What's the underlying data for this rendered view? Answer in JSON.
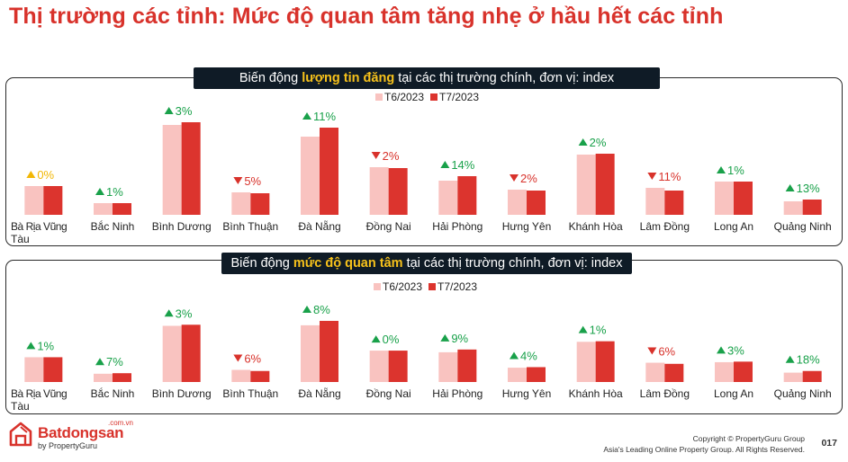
{
  "title": "Thị trường các tỉnh: Mức độ quan tâm tăng nhẹ ở hầu hết các tỉnh",
  "colors": {
    "t6": "#f9c3c0",
    "t7": "#dc342e",
    "up": "#19a14a",
    "down": "#d8322b",
    "flat": "#f2b705"
  },
  "panels": [
    {
      "heading_pre": "Biến động ",
      "heading_hl": "lượng tin đăng",
      "heading_post": " tại các thị trường chính, đơn vị: index"
    },
    {
      "heading_pre": "Biến động ",
      "heading_hl": "mức độ quan tâm",
      "heading_post": " tại các thị trường chính, đơn vị: index"
    }
  ],
  "chart_data": [
    {
      "type": "bar",
      "title": "Biến động lượng tin đăng tại các thị trường chính, đơn vị: index",
      "categories": [
        "Bà Rịa Vũng Tàu",
        "Bắc Ninh",
        "Bình Dương",
        "Bình Thuận",
        "Đà Nẵng",
        "Đồng Nai",
        "Hải Phòng",
        "Hưng Yên",
        "Khánh Hòa",
        "Lâm Đồng",
        "Long An",
        "Quảng Ninh"
      ],
      "series": [
        {
          "name": "T6/2023",
          "values": [
            32,
            13,
            100,
            25,
            87,
            53,
            38,
            28,
            67,
            30,
            37,
            15
          ]
        },
        {
          "name": "T7/2023",
          "values": [
            32,
            13,
            103,
            24,
            97,
            52,
            43,
            27,
            68,
            27,
            37,
            17
          ]
        }
      ],
      "changes": [
        {
          "dir": "flat",
          "label": "0%"
        },
        {
          "dir": "up",
          "label": "1%"
        },
        {
          "dir": "up",
          "label": "3%"
        },
        {
          "dir": "down",
          "label": "5%"
        },
        {
          "dir": "up",
          "label": "11%"
        },
        {
          "dir": "down",
          "label": "2%"
        },
        {
          "dir": "up",
          "label": "14%"
        },
        {
          "dir": "down",
          "label": "2%"
        },
        {
          "dir": "up",
          "label": "2%"
        },
        {
          "dir": "down",
          "label": "11%"
        },
        {
          "dir": "up",
          "label": "1%"
        },
        {
          "dir": "up",
          "label": "13%"
        }
      ],
      "ylim": [
        0,
        103
      ],
      "legend": "top-center",
      "grid": false
    },
    {
      "type": "bar",
      "title": "Biến động mức độ quan tâm tại các thị trường chính, đơn vị: index",
      "categories": [
        "Bà Rịa Vũng Tàu",
        "Bắc Ninh",
        "Bình Dương",
        "Bình Thuận",
        "Đà Nẵng",
        "Đồng Nai",
        "Hải Phòng",
        "Hưng Yên",
        "Khánh Hòa",
        "Lâm Đồng",
        "Long An",
        "Quảng Ninh"
      ],
      "series": [
        {
          "name": "T6/2023",
          "values": [
            45,
            15,
            102,
            22,
            103,
            57,
            54,
            26,
            73,
            35,
            36,
            17
          ]
        },
        {
          "name": "T7/2023",
          "values": [
            45,
            16,
            104,
            20,
            111,
            57,
            59,
            27,
            74,
            33,
            37,
            20
          ]
        }
      ],
      "changes": [
        {
          "dir": "up",
          "label": "1%"
        },
        {
          "dir": "up",
          "label": "7%"
        },
        {
          "dir": "up",
          "label": "3%"
        },
        {
          "dir": "down",
          "label": "6%"
        },
        {
          "dir": "up",
          "label": "8%"
        },
        {
          "dir": "up",
          "label": "0%"
        },
        {
          "dir": "up",
          "label": "9%"
        },
        {
          "dir": "up",
          "label": "4%"
        },
        {
          "dir": "up",
          "label": "1%"
        },
        {
          "dir": "down",
          "label": "6%"
        },
        {
          "dir": "up",
          "label": "3%"
        },
        {
          "dir": "up",
          "label": "18%"
        }
      ],
      "ylim": [
        0,
        111
      ],
      "legend": "top-center",
      "grid": false
    }
  ],
  "footer": {
    "logo_main": "Batdongsan",
    "logo_domain": ".com.vn",
    "logo_sub": "by PropertyGuru",
    "copyright_line1": "Copyright © PropertyGuru Group",
    "copyright_line2": "Asia's Leading Online Property Group. All Rights Reserved.",
    "page_number": "017"
  }
}
